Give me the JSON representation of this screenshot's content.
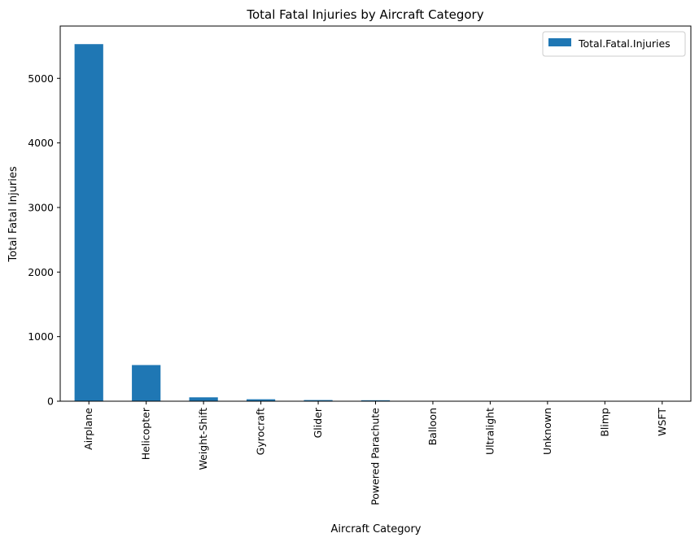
{
  "chart_data": {
    "type": "bar",
    "title": "Total Fatal Injuries by Aircraft Category",
    "xlabel": "Aircraft Category",
    "ylabel": "Total Fatal Injuries",
    "categories": [
      "Airplane",
      "Helicopter",
      "Weight-Shift",
      "Gyrocraft",
      "Glider",
      "Powered Parachute",
      "Balloon",
      "Ultralight",
      "Unknown",
      "Blimp",
      "WSFT"
    ],
    "series": [
      {
        "name": "Total.Fatal.Injuries",
        "values": [
          5530,
          560,
          60,
          30,
          18,
          15,
          6,
          5,
          3,
          2,
          1
        ]
      }
    ],
    "ylim": [
      0,
      5810
    ],
    "yticks": [
      0,
      1000,
      2000,
      3000,
      4000,
      5000
    ],
    "grid": false,
    "legend_position": "top-right",
    "colors": {
      "bar": "#1f77b4"
    }
  }
}
